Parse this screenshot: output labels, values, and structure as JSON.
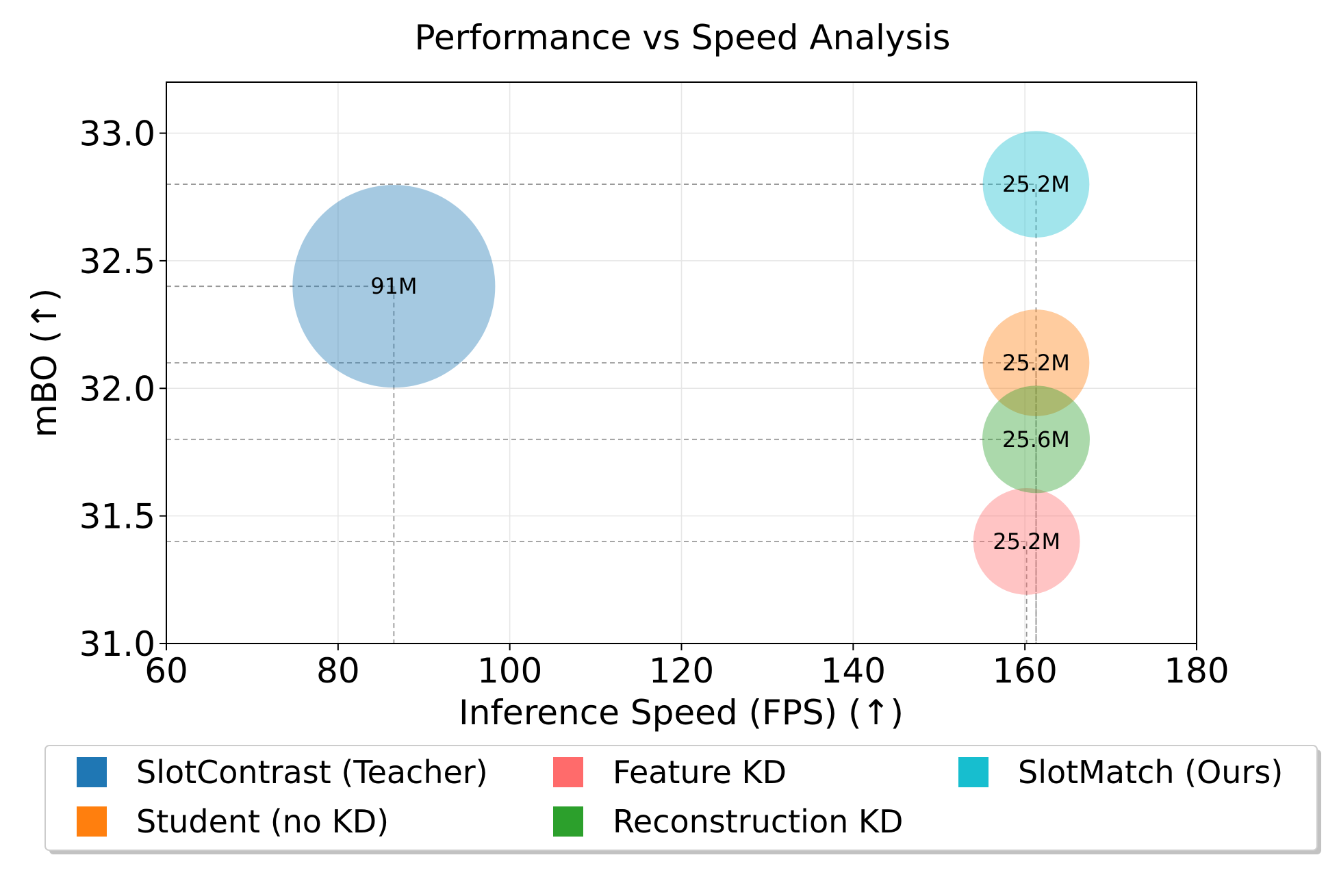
{
  "chart_data": {
    "type": "scatter",
    "title": "Performance vs Speed Analysis",
    "xlabel": "Inference Speed (FPS) (↑)",
    "ylabel": "mBO (↑)",
    "xlim": [
      60,
      180
    ],
    "ylim": [
      31.0,
      33.2
    ],
    "xticks": [
      "60",
      "80",
      "100",
      "120",
      "140",
      "160",
      "180"
    ],
    "yticks": [
      "31.0",
      "31.5",
      "32.0",
      "32.5",
      "33.0"
    ],
    "grid": true,
    "legend_position": "bottom",
    "series": [
      {
        "name": "SlotContrast (Teacher)",
        "color": "#1f77b4",
        "fps": 86.5,
        "mbo": 32.4,
        "params_m": 91,
        "label": "91M"
      },
      {
        "name": "Student (no KD)",
        "color": "#ff7f0e",
        "fps": 161.3,
        "mbo": 32.1,
        "params_m": 25.2,
        "label": "25.2M"
      },
      {
        "name": "Feature KD",
        "color": "#ff6b6b",
        "fps": 160.2,
        "mbo": 31.4,
        "params_m": 25.2,
        "label": "25.2M"
      },
      {
        "name": "Reconstruction KD",
        "color": "#2ca02c",
        "fps": 161.3,
        "mbo": 31.8,
        "params_m": 25.6,
        "label": "25.6M"
      },
      {
        "name": "SlotMatch (Ours)",
        "color": "#17becf",
        "fps": 161.3,
        "mbo": 32.8,
        "params_m": 25.2,
        "label": "25.2M"
      }
    ]
  }
}
